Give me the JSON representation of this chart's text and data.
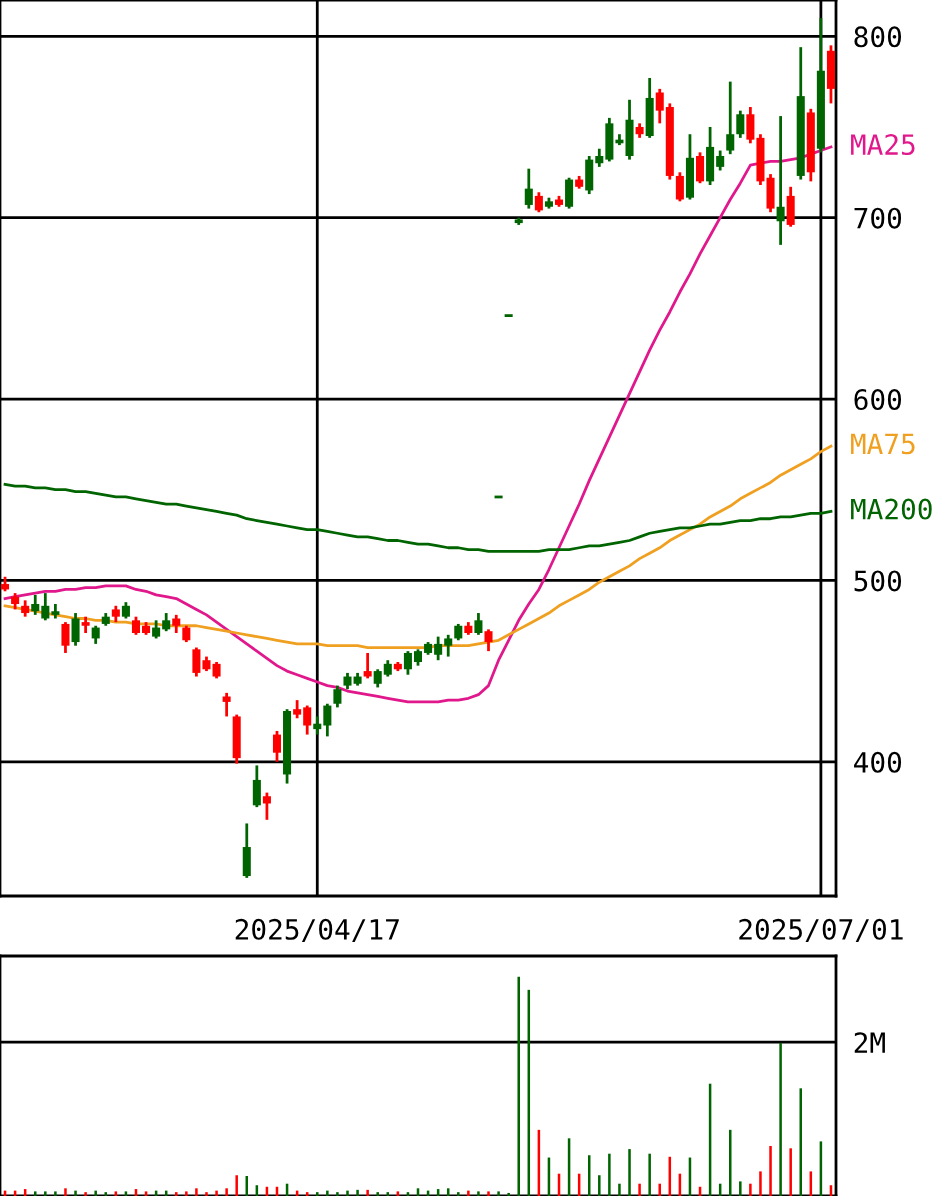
{
  "chart_data": [
    {
      "type": "candlestick",
      "categories": [
        null,
        null,
        null,
        null,
        null,
        null,
        null,
        null,
        null,
        null,
        null,
        null,
        null,
        null,
        null,
        null,
        null,
        null,
        null,
        null,
        null,
        null,
        null,
        null,
        null,
        null,
        null,
        null,
        null,
        null,
        null,
        "2025/04/17",
        null,
        null,
        null,
        null,
        null,
        null,
        null,
        null,
        null,
        null,
        null,
        null,
        null,
        null,
        null,
        null,
        null,
        null,
        null,
        null,
        null,
        null,
        null,
        null,
        null,
        null,
        null,
        null,
        null,
        null,
        null,
        null,
        null,
        null,
        null,
        null,
        null,
        null,
        null,
        null,
        null,
        null,
        null,
        null,
        null,
        null,
        null,
        null,
        null,
        "2025/07/01",
        null
      ],
      "ohlc": [
        [
          498,
          502,
          494,
          495
        ],
        [
          491,
          493,
          484,
          487
        ],
        [
          486,
          489,
          480,
          482
        ],
        [
          483,
          492,
          481,
          487
        ],
        [
          479,
          493,
          478,
          486
        ],
        [
          481,
          487,
          479,
          483
        ],
        [
          476,
          477,
          460,
          464
        ],
        [
          466,
          482,
          464,
          479
        ],
        [
          477,
          480,
          471,
          475
        ],
        [
          468,
          475,
          465,
          474
        ],
        [
          476,
          482,
          475,
          480
        ],
        [
          484,
          486,
          477,
          480
        ],
        [
          480,
          488,
          479,
          486
        ],
        [
          478,
          480,
          470,
          471
        ],
        [
          475,
          477,
          470,
          471
        ],
        [
          469,
          478,
          468,
          474
        ],
        [
          473,
          482,
          472,
          478
        ],
        [
          479,
          481,
          471,
          475
        ],
        [
          474,
          475,
          466,
          467
        ],
        [
          462,
          463,
          447,
          449
        ],
        [
          456,
          458,
          450,
          451
        ],
        [
          454,
          455,
          446,
          447
        ],
        [
          436,
          438,
          425,
          433
        ],
        [
          425,
          426,
          399,
          402
        ],
        [
          337,
          366,
          336,
          353
        ],
        [
          376,
          398,
          375,
          390
        ],
        [
          381,
          383,
          368,
          377
        ],
        [
          415,
          417,
          400,
          405
        ],
        [
          393,
          429,
          388,
          428
        ],
        [
          429,
          434,
          424,
          426
        ],
        [
          430,
          431,
          415,
          420
        ],
        [
          418,
          425,
          415,
          421
        ],
        [
          420,
          432,
          414,
          431
        ],
        [
          432,
          442,
          430,
          440
        ],
        [
          442,
          449,
          440,
          447
        ],
        [
          443,
          449,
          442,
          447
        ],
        [
          450,
          460,
          446,
          447
        ],
        [
          443,
          451,
          441,
          450
        ],
        [
          448,
          456,
          447,
          454
        ],
        [
          454,
          455,
          450,
          451
        ],
        [
          451,
          461,
          448,
          460
        ],
        [
          455,
          462,
          453,
          461
        ],
        [
          460,
          466,
          459,
          465
        ],
        [
          459,
          469,
          456,
          465
        ],
        [
          464,
          470,
          458,
          468
        ],
        [
          468,
          476,
          467,
          475
        ],
        [
          475,
          477,
          470,
          471
        ],
        [
          471,
          482,
          470,
          478
        ],
        [
          472,
          473,
          461,
          466
        ],
        [
          546,
          546,
          546,
          546
        ],
        [
          646,
          646,
          646,
          646
        ],
        [
          697,
          700,
          696,
          699
        ],
        [
          707,
          727,
          705,
          716
        ],
        [
          712,
          714,
          703,
          704
        ],
        [
          706,
          711,
          705,
          709
        ],
        [
          710,
          712,
          706,
          707
        ],
        [
          706,
          722,
          705,
          721
        ],
        [
          721,
          723,
          716,
          717
        ],
        [
          715,
          734,
          713,
          732
        ],
        [
          730,
          738,
          728,
          734
        ],
        [
          732,
          755,
          731,
          752
        ],
        [
          741,
          746,
          740,
          743
        ],
        [
          734,
          765,
          732,
          754
        ],
        [
          750,
          752,
          744,
          746
        ],
        [
          745,
          777,
          744,
          766
        ],
        [
          769,
          771,
          752,
          759
        ],
        [
          761,
          763,
          721,
          723
        ],
        [
          723,
          725,
          709,
          710
        ],
        [
          711,
          746,
          710,
          733
        ],
        [
          734,
          736,
          719,
          720
        ],
        [
          720,
          750,
          718,
          739
        ],
        [
          728,
          737,
          726,
          734
        ],
        [
          737,
          775,
          735,
          746
        ],
        [
          746,
          759,
          744,
          757
        ],
        [
          757,
          761,
          741,
          743
        ],
        [
          744,
          746,
          718,
          720
        ],
        [
          722,
          724,
          703,
          705
        ],
        [
          698,
          756,
          685,
          706
        ],
        [
          712,
          717,
          695,
          696
        ],
        [
          723,
          794,
          721,
          767
        ],
        [
          758,
          760,
          720,
          725
        ],
        [
          738,
          810,
          736,
          781
        ],
        [
          792,
          795,
          763,
          771
        ]
      ],
      "colors": [
        "#ff0000",
        "#ff0000",
        "#ff0000",
        "#006400",
        "#006400",
        "#006400",
        "#ff0000",
        "#006400",
        "#ff0000",
        "#006400",
        "#006400",
        "#ff0000",
        "#006400",
        "#ff0000",
        "#ff0000",
        "#006400",
        "#006400",
        "#ff0000",
        "#ff0000",
        "#ff0000",
        "#ff0000",
        "#ff0000",
        "#ff0000",
        "#ff0000",
        "#006400",
        "#006400",
        "#ff0000",
        "#ff0000",
        "#006400",
        "#ff0000",
        "#ff0000",
        "#006400",
        "#006400",
        "#006400",
        "#006400",
        "#006400",
        "#ff0000",
        "#006400",
        "#006400",
        "#ff0000",
        "#006400",
        "#006400",
        "#006400",
        "#006400",
        "#006400",
        "#006400",
        "#ff0000",
        "#006400",
        "#ff0000",
        "#006400",
        "#006400",
        "#006400",
        "#006400",
        "#ff0000",
        "#006400",
        "#ff0000",
        "#006400",
        "#ff0000",
        "#006400",
        "#006400",
        "#006400",
        "#006400",
        "#006400",
        "#ff0000",
        "#006400",
        "#ff0000",
        "#ff0000",
        "#ff0000",
        "#006400",
        "#ff0000",
        "#006400",
        "#006400",
        "#006400",
        "#006400",
        "#ff0000",
        "#ff0000",
        "#ff0000",
        "#006400",
        "#ff0000",
        "#006400",
        "#ff0000",
        "#006400",
        "#ff0000"
      ],
      "series": [
        {
          "name": "MA25",
          "type": "line",
          "color": "#e0188c",
          "values": [
            490,
            491,
            492,
            493,
            494,
            494,
            495,
            495,
            496,
            496,
            497,
            497,
            497,
            495,
            494,
            492,
            491,
            490,
            487,
            484,
            481,
            477,
            473,
            469,
            465,
            461,
            457,
            453,
            450,
            448,
            446,
            444,
            442,
            441,
            439,
            438,
            437,
            436,
            435,
            434,
            433,
            433,
            433,
            433,
            434,
            434,
            435,
            437,
            442,
            456,
            467,
            478,
            487,
            495,
            506,
            518,
            530,
            542,
            555,
            567,
            579,
            591,
            603,
            615,
            627,
            638,
            648,
            659,
            669,
            680,
            690,
            700,
            710,
            719,
            729,
            730,
            731,
            731,
            732,
            733,
            735,
            737,
            739
          ]
        },
        {
          "name": "MA75",
          "type": "line",
          "color": "#f0a020",
          "values": [
            486,
            485,
            484,
            483,
            482,
            481,
            480,
            479,
            479,
            478,
            478,
            477,
            477,
            476,
            476,
            476,
            475,
            475,
            475,
            475,
            474,
            473,
            472,
            471,
            470,
            469,
            468,
            467,
            466,
            465,
            465,
            465,
            464,
            464,
            464,
            464,
            463,
            463,
            463,
            463,
            463,
            463,
            463,
            464,
            464,
            464,
            464,
            465,
            466,
            467,
            470,
            473,
            476,
            479,
            482,
            486,
            489,
            492,
            495,
            499,
            502,
            505,
            508,
            512,
            515,
            518,
            522,
            525,
            528,
            531,
            535,
            538,
            541,
            545,
            548,
            551,
            554,
            558,
            561,
            564,
            567,
            571,
            574
          ]
        },
        {
          "name": "MA200",
          "type": "line",
          "color": "#006400",
          "values": [
            553,
            552,
            552,
            551,
            551,
            550,
            550,
            549,
            549,
            548,
            547,
            546,
            546,
            545,
            544,
            543,
            542,
            542,
            541,
            540,
            539,
            538,
            537,
            536,
            534,
            533,
            532,
            531,
            530,
            529,
            528,
            528,
            527,
            526,
            525,
            524,
            524,
            523,
            522,
            522,
            521,
            520,
            520,
            519,
            518,
            518,
            517,
            517,
            516,
            516,
            516,
            516,
            516,
            516,
            517,
            517,
            517,
            518,
            519,
            519,
            520,
            521,
            522,
            524,
            526,
            527,
            528,
            529,
            529,
            530,
            531,
            531,
            532,
            533,
            533,
            534,
            534,
            535,
            535,
            536,
            537,
            537,
            538
          ]
        }
      ],
      "ylim": [
        326,
        820
      ],
      "yticks": [
        400,
        500,
        600,
        700,
        800
      ],
      "grid": true
    },
    {
      "type": "bar",
      "categories": [
        null,
        null,
        null,
        null,
        null,
        null,
        null,
        null,
        null,
        null,
        null,
        null,
        null,
        null,
        null,
        null,
        null,
        null,
        null,
        null,
        null,
        null,
        null,
        null,
        null,
        null,
        null,
        null,
        null,
        null,
        null,
        null,
        null,
        null,
        null,
        null,
        null,
        null,
        null,
        null,
        null,
        null,
        null,
        null,
        null,
        null,
        null,
        null,
        null,
        null,
        null,
        null,
        null,
        null,
        null,
        null,
        null,
        null,
        null,
        null,
        null,
        null,
        null,
        null,
        null,
        null,
        null,
        null,
        null,
        null,
        null,
        null,
        null,
        null,
        null,
        null,
        null,
        null,
        null,
        null,
        null,
        null,
        null
      ],
      "values": [
        70000,
        70000,
        90000,
        60000,
        60000,
        60000,
        100000,
        70000,
        50000,
        70000,
        50000,
        60000,
        60000,
        90000,
        60000,
        70000,
        70000,
        50000,
        60000,
        100000,
        50000,
        70000,
        100000,
        270000,
        260000,
        140000,
        120000,
        120000,
        160000,
        70000,
        50000,
        50000,
        70000,
        50000,
        70000,
        80000,
        80000,
        50000,
        50000,
        60000,
        50000,
        100000,
        70000,
        90000,
        100000,
        50000,
        70000,
        60000,
        60000,
        60000,
        40000,
        2850000,
        2680000,
        860000,
        500000,
        290000,
        750000,
        290000,
        530000,
        270000,
        550000,
        160000,
        610000,
        160000,
        550000,
        160000,
        510000,
        290000,
        500000,
        120000,
        1460000,
        160000,
        860000,
        190000,
        160000,
        320000,
        650000,
        1990000,
        620000,
        1400000,
        320000,
        710000,
        140000
      ],
      "colors": [
        "#ff0000",
        "#ff0000",
        "#ff0000",
        "#006400",
        "#006400",
        "#006400",
        "#ff0000",
        "#006400",
        "#ff0000",
        "#006400",
        "#006400",
        "#ff0000",
        "#006400",
        "#ff0000",
        "#ff0000",
        "#006400",
        "#006400",
        "#ff0000",
        "#ff0000",
        "#ff0000",
        "#ff0000",
        "#ff0000",
        "#ff0000",
        "#ff0000",
        "#006400",
        "#006400",
        "#ff0000",
        "#ff0000",
        "#006400",
        "#ff0000",
        "#ff0000",
        "#006400",
        "#006400",
        "#006400",
        "#006400",
        "#006400",
        "#ff0000",
        "#006400",
        "#006400",
        "#ff0000",
        "#006400",
        "#006400",
        "#006400",
        "#006400",
        "#006400",
        "#006400",
        "#ff0000",
        "#006400",
        "#ff0000",
        "#006400",
        "#006400",
        "#006400",
        "#006400",
        "#ff0000",
        "#006400",
        "#ff0000",
        "#006400",
        "#ff0000",
        "#006400",
        "#006400",
        "#006400",
        "#006400",
        "#006400",
        "#ff0000",
        "#006400",
        "#ff0000",
        "#ff0000",
        "#ff0000",
        "#006400",
        "#ff0000",
        "#006400",
        "#006400",
        "#006400",
        "#006400",
        "#ff0000",
        "#ff0000",
        "#ff0000",
        "#006400",
        "#ff0000",
        "#006400",
        "#ff0000",
        "#006400",
        "#ff0000"
      ],
      "ylim": [
        0,
        3120000
      ],
      "yticks": [
        {
          "value": 2000000,
          "label": "2M"
        }
      ],
      "grid": "y",
      "tick_labels": "y"
    }
  ]
}
